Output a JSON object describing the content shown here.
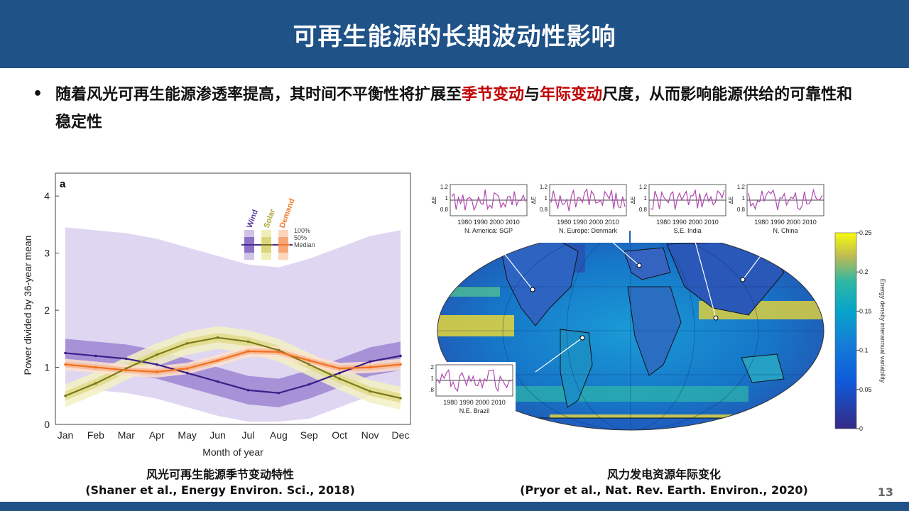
{
  "title": "可再生能源的长期波动性影响",
  "bullet": {
    "part1": "随着风光可再生能源渗透率提高，其时间不平衡性将扩展至",
    "highlight1": "季节变动",
    "part2": "与",
    "highlight2": "年际变动",
    "part3": "尺度，从而影响能源供给的可靠性和稳定性"
  },
  "left_figure": {
    "panel_label": "a",
    "caption_line1": "风光可再生能源季节变动特性",
    "caption_line2": "(Shaner et al., Energy Environ. Sci., 2018)",
    "legend_entries": [
      "Wind",
      "Solar",
      "Demand"
    ],
    "legend_levels": [
      "100%",
      "50%",
      "Median"
    ],
    "colors": {
      "wind": "#4a2a8c",
      "solar": "#9a9a2a",
      "demand": "#f07a2a"
    }
  },
  "right_figure": {
    "caption_line1": "风力发电资源年际变化",
    "caption_line2": "(Pryor et al., Nat. Rev. Earth. Environ., 2020)",
    "colorbar_label": "Energy density interannual variability",
    "colorbar_ticks": [
      "0.25",
      "0.2",
      "0.15",
      "0.1",
      "0.05",
      "0"
    ],
    "inset_axis_label": "ΔE",
    "inset_yticks": [
      "1.2",
      "1",
      "0.8"
    ],
    "inset_xticks": "1980 1990 2000 2010",
    "insets": [
      {
        "label": "N. America: SGP"
      },
      {
        "label": "N. Europe: Denmark"
      },
      {
        "label": "S.E. India"
      },
      {
        "label": "N. China"
      },
      {
        "label": "N.E. Brazil"
      }
    ]
  },
  "page_number": "13",
  "chart_data": {
    "type": "line",
    "title": "",
    "xlabel": "Month of year",
    "ylabel": "Power divided by 36-year mean",
    "categories": [
      "Jan",
      "Feb",
      "Mar",
      "Apr",
      "May",
      "Jun",
      "Jul",
      "Aug",
      "Sep",
      "Oct",
      "Nov",
      "Dec"
    ],
    "ylim": [
      0,
      4.4
    ],
    "yticks": [
      0,
      1,
      2,
      3,
      4
    ],
    "series": [
      {
        "name": "Wind",
        "values": [
          1.25,
          1.2,
          1.15,
          1.05,
          0.9,
          0.75,
          0.6,
          0.55,
          0.7,
          0.9,
          1.1,
          1.2
        ]
      },
      {
        "name": "Solar",
        "values": [
          0.5,
          0.72,
          0.98,
          1.22,
          1.42,
          1.52,
          1.45,
          1.3,
          1.05,
          0.8,
          0.58,
          0.46
        ]
      },
      {
        "name": "Demand",
        "values": [
          1.05,
          1.0,
          0.95,
          0.92,
          0.98,
          1.12,
          1.28,
          1.27,
          1.12,
          0.98,
          1.0,
          1.05
        ]
      }
    ]
  }
}
